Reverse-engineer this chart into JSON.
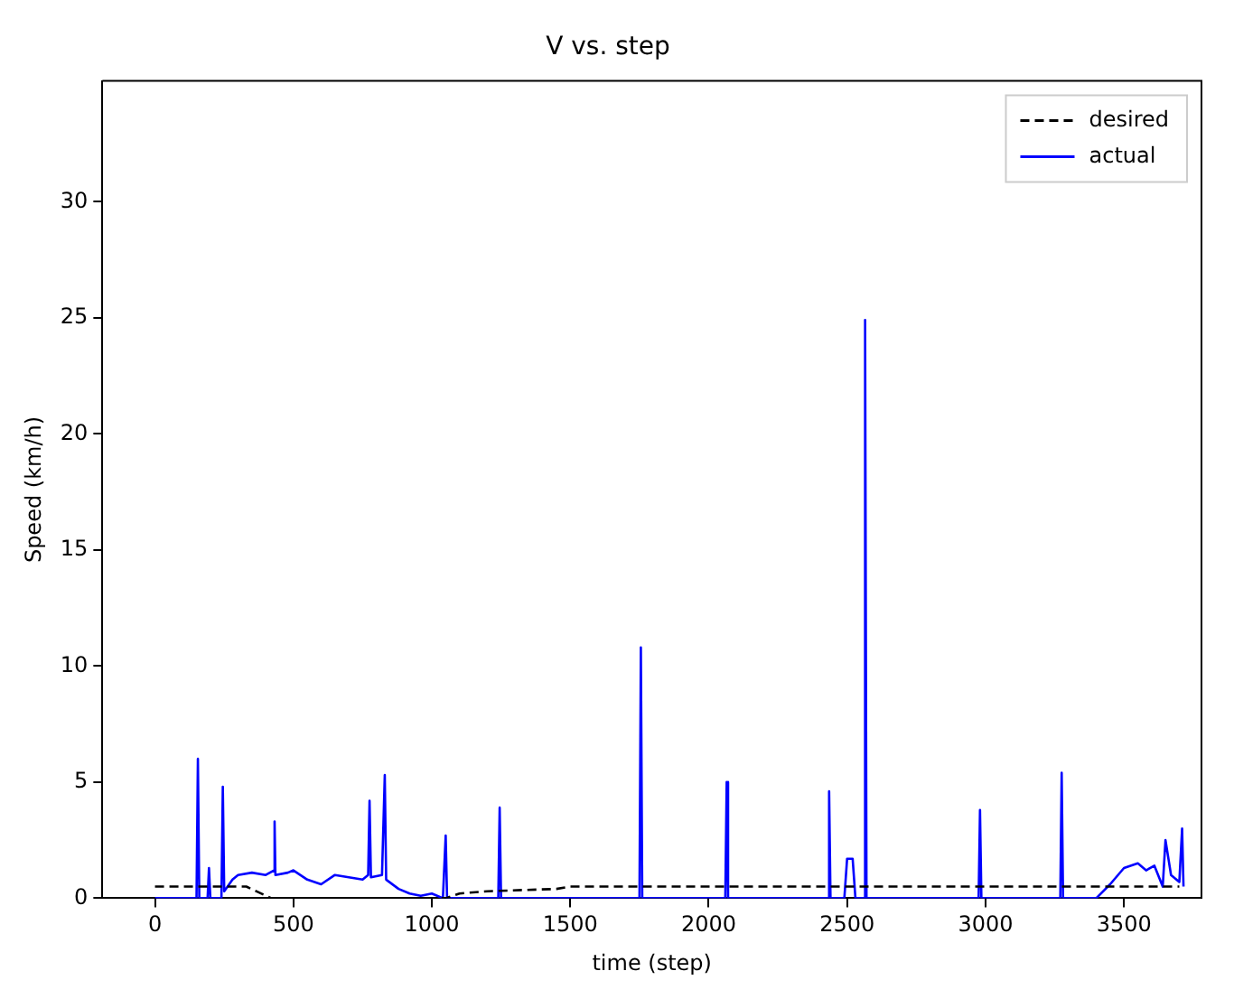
{
  "chart_data": {
    "type": "line",
    "title": "V vs. step",
    "xlabel": "time (step)",
    "ylabel": "Speed (km/h)",
    "xlim": [
      -190,
      3780
    ],
    "xticks": [
      0,
      500,
      1000,
      1500,
      2000,
      2500,
      3000,
      3500
    ],
    "ylim": [
      0,
      35.2
    ],
    "yticks": [
      0,
      5,
      10,
      15,
      20,
      25,
      30
    ],
    "grid": false,
    "legend": "top right",
    "marker": "none",
    "series": [
      {
        "name": "desired",
        "color": "#000000",
        "line_style": "dashed",
        "x": [
          0,
          330,
          420,
          1050,
          1100,
          1200,
          1450,
          1500,
          3700
        ],
        "values": [
          0.5,
          0.5,
          0,
          0,
          0.2,
          0.3,
          0.4,
          0.5,
          0.5
        ]
      },
      {
        "name": "actual",
        "color": "#0000ff",
        "line_style": "solid",
        "x": [
          0,
          150,
          155,
          160,
          190,
          195,
          200,
          240,
          245,
          250,
          280,
          300,
          350,
          400,
          430,
          432,
          435,
          480,
          500,
          550,
          600,
          650,
          700,
          750,
          770,
          775,
          780,
          820,
          830,
          835,
          880,
          920,
          960,
          1000,
          1040,
          1050,
          1055,
          1240,
          1245,
          1250,
          1750,
          1755,
          1760,
          2060,
          2065,
          2070,
          2430,
          2435,
          2440,
          2490,
          2500,
          2520,
          2530,
          2560,
          2565,
          2570,
          2975,
          2980,
          2985,
          3270,
          3275,
          3280,
          3400,
          3450,
          3500,
          3550,
          3580,
          3610,
          3640,
          3650,
          3670,
          3700,
          3710,
          3715
        ],
        "values": [
          0,
          0,
          6.0,
          0,
          0,
          1.3,
          0,
          0,
          4.8,
          0.3,
          0.8,
          1.0,
          1.1,
          1.0,
          1.2,
          3.3,
          1.0,
          1.1,
          1.2,
          0.8,
          0.6,
          1.0,
          0.9,
          0.8,
          1.0,
          4.2,
          0.9,
          1.0,
          5.3,
          0.8,
          0.4,
          0.2,
          0.1,
          0.2,
          0,
          2.7,
          0,
          0,
          3.9,
          0,
          0,
          10.8,
          0,
          0,
          5.0,
          0,
          0,
          4.6,
          0,
          0,
          1.7,
          1.7,
          0,
          0,
          24.9,
          0,
          0,
          3.8,
          0,
          0,
          5.4,
          0,
          0,
          0.6,
          1.3,
          1.5,
          1.2,
          1.4,
          0.5,
          2.5,
          1.0,
          0.7,
          3.0,
          0.5
        ]
      }
    ]
  }
}
